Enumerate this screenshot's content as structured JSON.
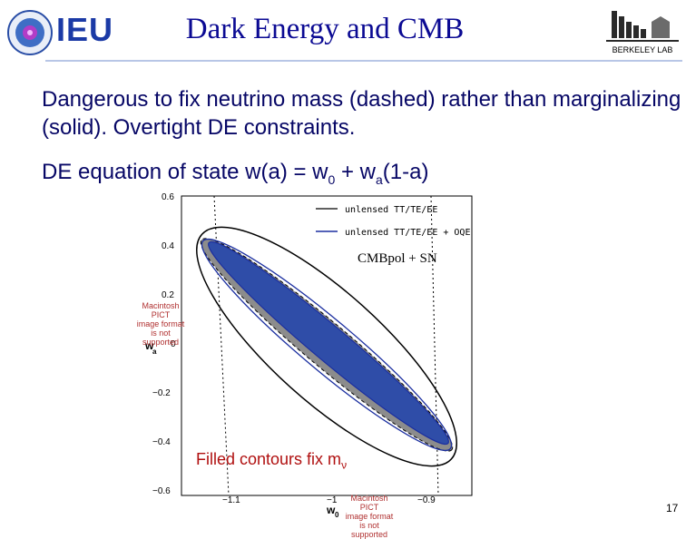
{
  "header": {
    "title": "Dark Energy and CMB",
    "left_logo_text": "IEU",
    "right_logo_text": "BERKELEY LAB"
  },
  "bullets": {
    "line1": "Dangerous to fix neutrino mass (dashed) rather than marginalizing (solid).  Overtight DE constraints.",
    "line2_prefix": "DE equation of state  w(a) = w",
    "line2_sub0": "0",
    "line2_mid": " + w",
    "line2_suba": "a",
    "line2_suffix": "(1-a)"
  },
  "plot": {
    "legend": [
      "unlensed TT/TE/EE",
      "unlensed TT/TE/EE + OQE"
    ],
    "label_inside": "CMBpol + SN",
    "y_ticks": [
      "0.6",
      "0.4",
      "0.2",
      "0",
      "−0.2",
      "−0.4",
      "−0.6"
    ],
    "x_ticks": [
      "−1.1",
      "−1",
      "−0.9"
    ],
    "y_label": "w",
    "y_label_sub": "a",
    "x_label": "w",
    "x_label_sub": "0",
    "colors": {
      "line_black": "#000000",
      "line_blue": "#1b2fa0",
      "fill_blue": "#2f4da8",
      "fill_gray": "#8c8c8c"
    }
  },
  "overlays": {
    "pict_note": [
      "Macintosh PICT",
      "image format",
      "is not supported"
    ]
  },
  "caption": {
    "text": "Filled contours fix m",
    "sub": "ν"
  },
  "footer": {
    "slide_number": "17"
  }
}
